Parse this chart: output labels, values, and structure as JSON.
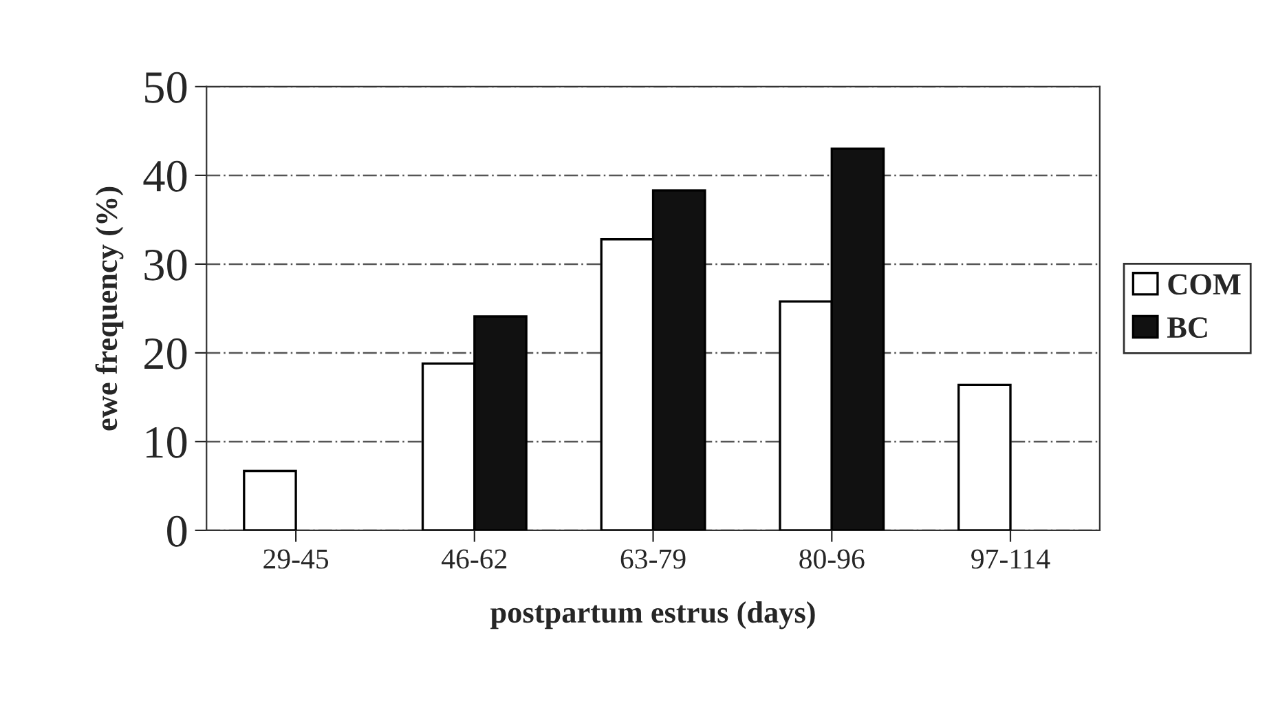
{
  "chart_data": {
    "type": "bar",
    "xlabel": "postpartum estrus (days)",
    "ylabel": "ewe frequency (%)",
    "categories": [
      "29-45",
      "46-62",
      "63-79",
      "80-96",
      "97-114"
    ],
    "series": [
      {
        "name": "COM",
        "color": "#ffffff",
        "values": [
          6.7,
          18.8,
          32.8,
          25.8,
          16.4
        ]
      },
      {
        "name": "BC",
        "color": "#111111",
        "values": [
          null,
          24.1,
          38.3,
          43.0,
          null
        ]
      }
    ],
    "ylim": [
      0,
      50
    ],
    "yticks": [
      0,
      10,
      20,
      30,
      40,
      50
    ],
    "grid": "y",
    "legend": "right"
  }
}
